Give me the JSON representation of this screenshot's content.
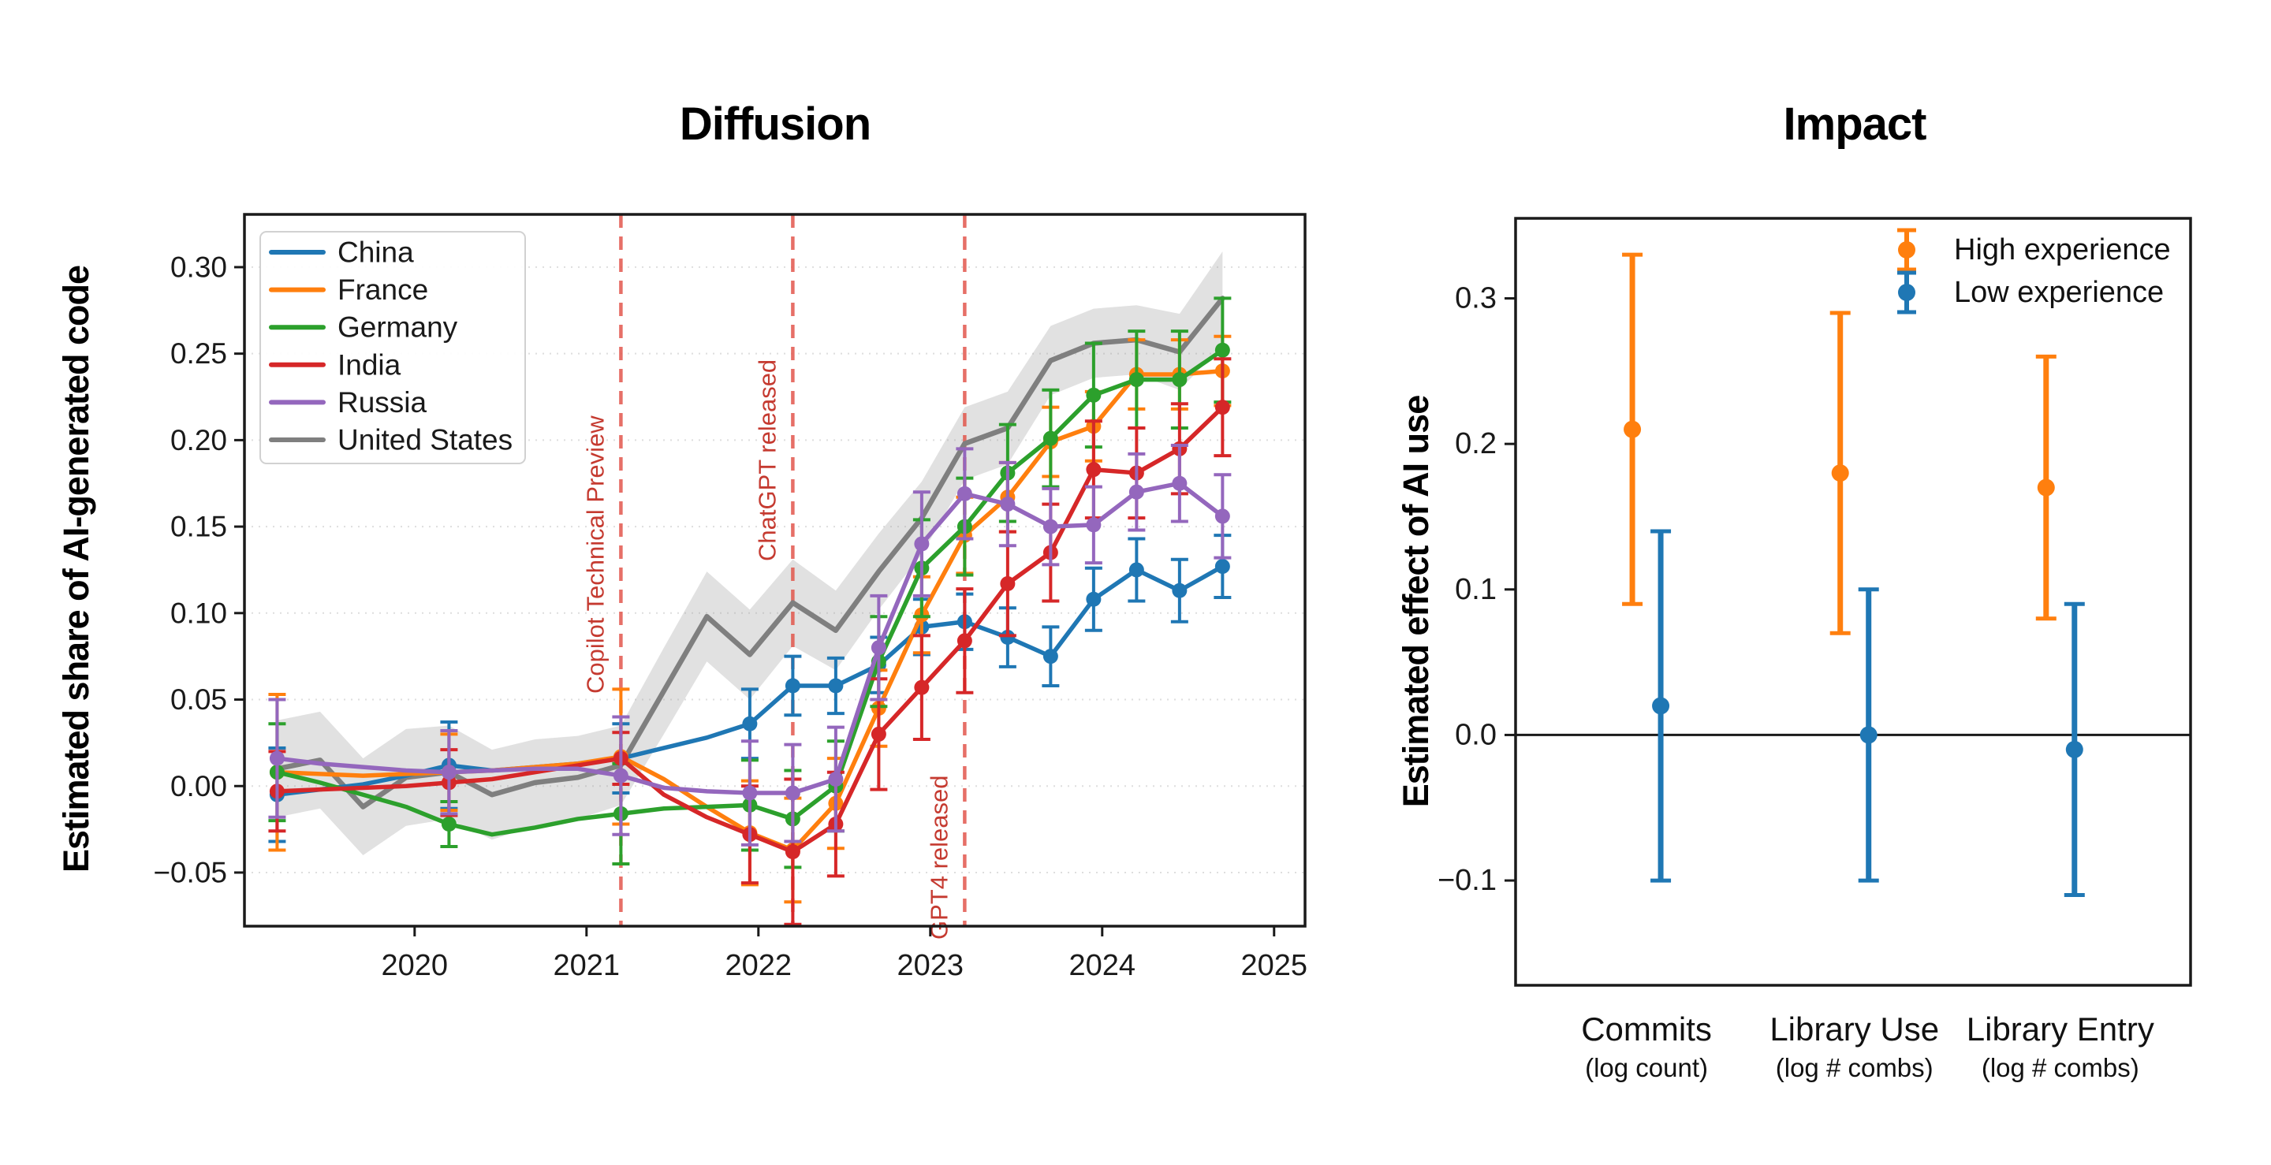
{
  "figure": {
    "background": "#ffffff"
  },
  "chart_data": [
    {
      "id": "diffusion",
      "type": "line",
      "title": "Diffusion",
      "ylabel": "Estimated share of AI-generated code",
      "xlabel": "",
      "xlim": [
        2019.01,
        2025.18
      ],
      "ylim": [
        -0.081,
        0.3305
      ],
      "x_ticks": [
        2020,
        2021,
        2022,
        2023,
        2024,
        2025
      ],
      "x_tick_labels": [
        "2020",
        "2021",
        "2022",
        "2023",
        "2024",
        "2025"
      ],
      "y_ticks": [
        0.3,
        0.25,
        0.2,
        0.15,
        0.1,
        0.05,
        0.0,
        -0.05
      ],
      "y_tick_labels": [
        "0.30",
        "0.25",
        "0.20",
        "0.15",
        "0.10",
        "0.05",
        "0.00",
        "−0.05"
      ],
      "grid": "horizontal-dotted",
      "legend_position": "upper-left",
      "event_line_color": "#e2574d",
      "event_label_color": "#c53a30",
      "events": [
        {
          "label": "Copilot Technical Preview",
          "x": 2021.2
        },
        {
          "label": "ChatGPT released",
          "x": 2022.2
        },
        {
          "label": "GPT4 released",
          "x": 2023.2
        }
      ],
      "x": [
        2019.2,
        2019.45,
        2019.7,
        2019.95,
        2020.2,
        2020.45,
        2020.7,
        2020.95,
        2021.2,
        2021.45,
        2021.7,
        2021.95,
        2022.2,
        2022.45,
        2022.7,
        2022.95,
        2023.2,
        2023.45,
        2023.7,
        2023.95,
        2024.2,
        2024.45,
        2024.7
      ],
      "marker_x_idx": [
        0,
        4,
        8,
        11,
        12,
        13,
        14,
        15,
        16,
        17,
        18,
        19,
        20,
        21,
        22
      ],
      "series": [
        {
          "name": "China",
          "color": "#1f77b4",
          "values": [
            -0.005,
            -0.002,
            0.001,
            0.006,
            0.012,
            0.009,
            0.011,
            0.013,
            0.016,
            0.022,
            0.028,
            0.036,
            0.058,
            0.058,
            0.07,
            0.092,
            0.095,
            0.086,
            0.075,
            0.108,
            0.125,
            0.113,
            0.127
          ],
          "err": [
            0.027,
            0,
            0,
            0,
            0.025,
            0,
            0,
            0,
            0.02,
            0,
            0,
            0.02,
            0.017,
            0.016,
            0.016,
            0.016,
            0.016,
            0.017,
            0.017,
            0.018,
            0.018,
            0.018,
            0.018
          ]
        },
        {
          "name": "France",
          "color": "#ff7f0e",
          "values": [
            0.008,
            0.007,
            0.006,
            0.007,
            0.008,
            0.009,
            0.011,
            0.013,
            0.017,
            0.004,
            -0.012,
            -0.027,
            -0.037,
            -0.01,
            0.045,
            0.099,
            0.145,
            0.167,
            0.199,
            0.208,
            0.238,
            0.238,
            0.24
          ],
          "err": [
            0.045,
            0,
            0,
            0,
            0.022,
            0,
            0,
            0,
            0.039,
            0,
            0,
            0.03,
            0.03,
            0.026,
            0.022,
            0.022,
            0.022,
            0.02,
            0.02,
            0.02,
            0.02,
            0.02,
            0.02
          ]
        },
        {
          "name": "Germany",
          "color": "#2ca02c",
          "values": [
            0.008,
            0.002,
            -0.005,
            -0.012,
            -0.022,
            -0.028,
            -0.024,
            -0.019,
            -0.016,
            -0.013,
            -0.012,
            -0.011,
            -0.019,
            0.0,
            0.072,
            0.126,
            0.15,
            0.181,
            0.201,
            0.226,
            0.235,
            0.235,
            0.252
          ],
          "err": [
            0.028,
            0,
            0,
            0,
            0.013,
            0,
            0,
            0,
            0.029,
            0,
            0,
            0.026,
            0.028,
            0.026,
            0.026,
            0.028,
            0.028,
            0.028,
            0.028,
            0.03,
            0.028,
            0.028,
            0.03
          ]
        },
        {
          "name": "India",
          "color": "#d62728",
          "values": [
            -0.003,
            -0.002,
            -0.001,
            0.0,
            0.002,
            0.004,
            0.008,
            0.012,
            0.016,
            -0.005,
            -0.018,
            -0.028,
            -0.038,
            -0.022,
            0.03,
            0.057,
            0.084,
            0.117,
            0.135,
            0.183,
            0.181,
            0.195,
            0.219
          ],
          "err": [
            0.023,
            0,
            0,
            0,
            0.019,
            0,
            0,
            0,
            0.015,
            0,
            0,
            0.028,
            0.042,
            0.03,
            0.032,
            0.03,
            0.03,
            0.03,
            0.028,
            0.028,
            0.026,
            0.026,
            0.028
          ]
        },
        {
          "name": "Russia",
          "color": "#9467bd",
          "values": [
            0.016,
            0.013,
            0.011,
            0.009,
            0.008,
            0.009,
            0.01,
            0.01,
            0.006,
            -0.001,
            -0.003,
            -0.004,
            -0.004,
            0.004,
            0.08,
            0.14,
            0.169,
            0.163,
            0.15,
            0.151,
            0.17,
            0.175,
            0.156
          ],
          "err": [
            0.034,
            0,
            0,
            0,
            0.024,
            0,
            0,
            0,
            0.034,
            0,
            0,
            0.03,
            0.028,
            0.03,
            0.03,
            0.03,
            0.026,
            0.024,
            0.022,
            0.022,
            0.022,
            0.022,
            0.024
          ]
        },
        {
          "name": "United States",
          "color": "#7f7f7f",
          "values": [
            0.01,
            0.015,
            -0.012,
            0.005,
            0.008,
            -0.005,
            0.002,
            0.005,
            0.012,
            0.055,
            0.098,
            0.076,
            0.106,
            0.09,
            0.124,
            0.155,
            0.198,
            0.207,
            0.246,
            0.256,
            0.258,
            0.251,
            0.282
          ],
          "err": null,
          "band": [
            0.028,
            0.028,
            0.028,
            0.028,
            0.027,
            0.026,
            0.025,
            0.024,
            0.023,
            0.025,
            0.026,
            0.026,
            0.025,
            0.023,
            0.022,
            0.021,
            0.021,
            0.021,
            0.02,
            0.02,
            0.02,
            0.022,
            0.027
          ]
        }
      ]
    },
    {
      "id": "impact",
      "type": "scatter-errorbar",
      "title": "Impact",
      "ylabel": "Estimated effect of AI use",
      "categories": [
        "Commits",
        "Library Use",
        "Library Entry"
      ],
      "category_sublabels": [
        "(log count)",
        "(log # combs)",
        "(log # combs)"
      ],
      "ylim": [
        -0.172,
        0.355
      ],
      "y_ticks": [
        0.3,
        0.2,
        0.1,
        0.0,
        -0.1
      ],
      "y_tick_labels": [
        "0.3",
        "0.2",
        "0.1",
        "0.0",
        "−0.1"
      ],
      "grid": "none",
      "zero_line": true,
      "legend_position": "upper-right",
      "series": [
        {
          "name": "High experience",
          "color": "#ff7f0e",
          "values": [
            0.21,
            0.18,
            0.17
          ],
          "ci_low": [
            0.09,
            0.07,
            0.08
          ],
          "ci_high": [
            0.33,
            0.29,
            0.26
          ]
        },
        {
          "name": "Low experience",
          "color": "#1f77b4",
          "values": [
            0.02,
            0.0,
            -0.01
          ],
          "ci_low": [
            -0.1,
            -0.1,
            -0.11
          ],
          "ci_high": [
            0.14,
            0.1,
            0.09
          ]
        }
      ]
    }
  ]
}
